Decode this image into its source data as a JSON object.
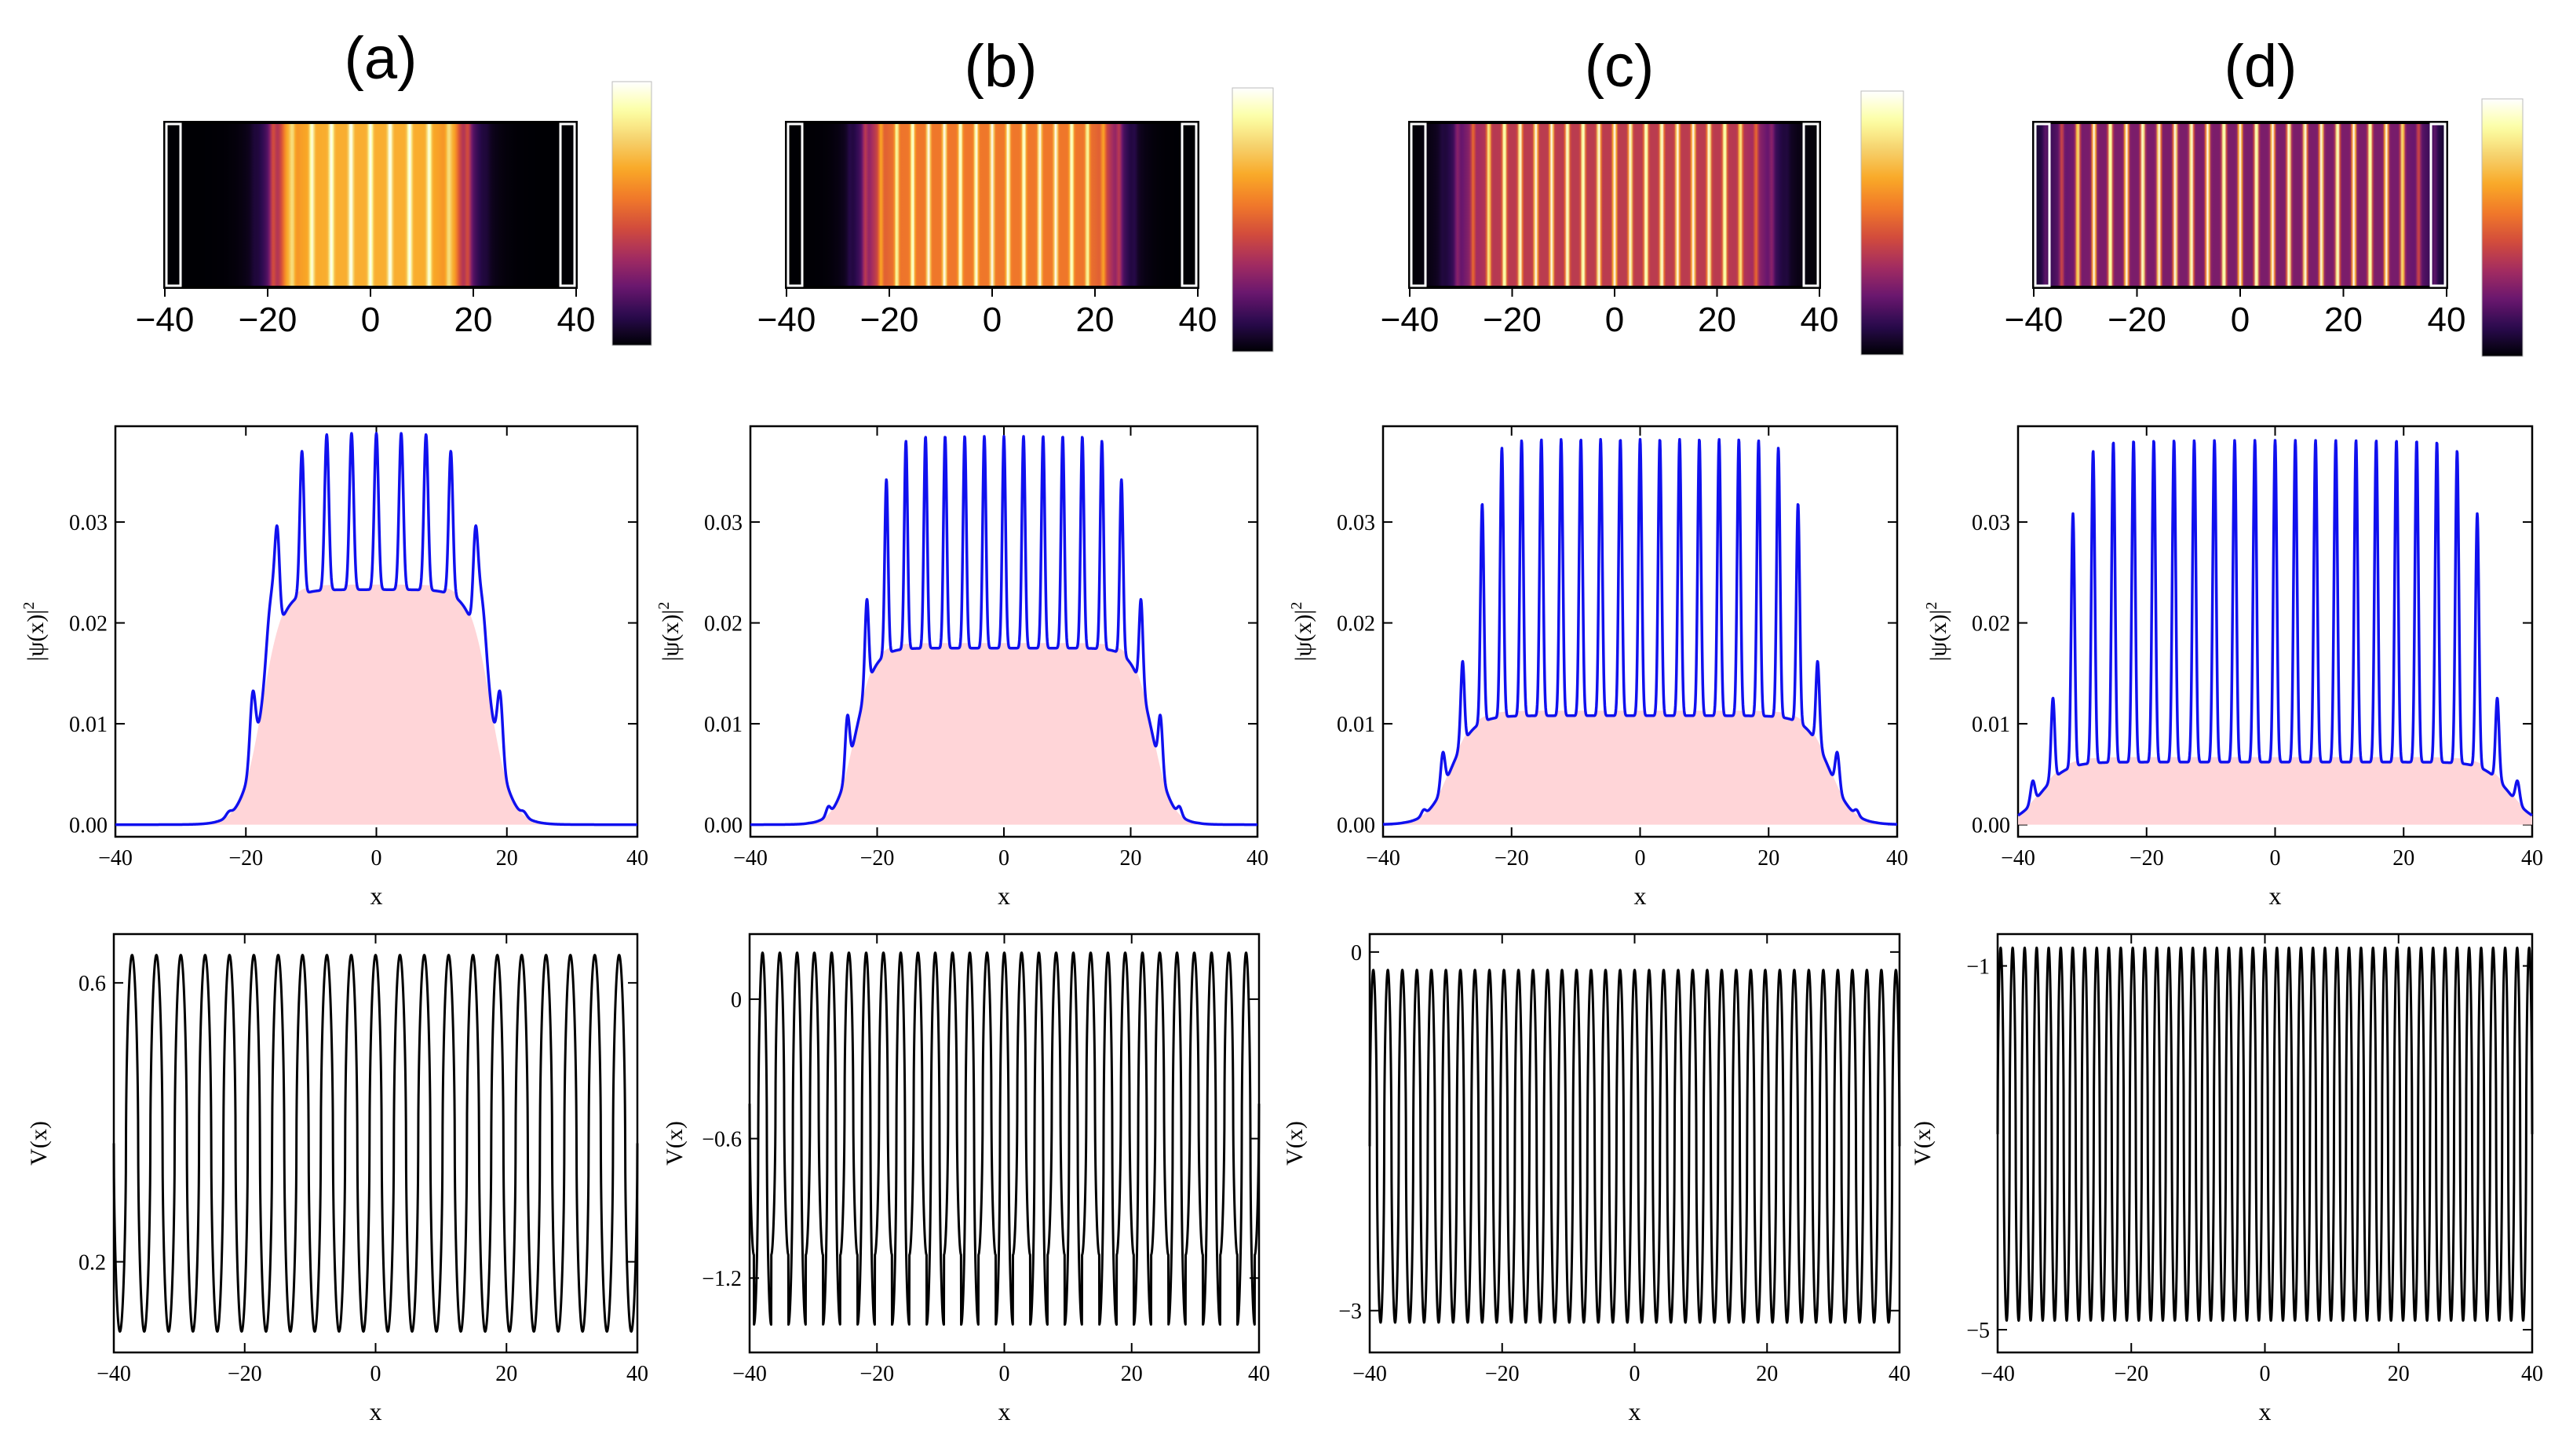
{
  "figure": {
    "panel_labels": [
      "(a)",
      "(b)",
      "(c)",
      "(d)"
    ]
  },
  "colormap": {
    "name": "inferno-like",
    "stops": [
      "#000004",
      "#2a0a4e",
      "#6a176e",
      "#a32c61",
      "#d24c3c",
      "#f0782a",
      "#f9a826",
      "#f6d16c",
      "#fcffa4",
      "#ffffff"
    ]
  },
  "colors": {
    "density_line": "#1010ee",
    "density_fill": "#ffd5d8",
    "potential_line": "#000000",
    "frame": "#000000"
  },
  "chart_data": [
    {
      "panel": "(a)",
      "type": "heatmap",
      "description_values": "density |psi(x)|^2 mapped to color over x",
      "x_ticks": [
        -40,
        -20,
        0,
        20,
        40
      ],
      "xlim": [
        -40,
        40
      ]
    },
    {
      "panel": "(b)",
      "type": "heatmap",
      "x_ticks": [
        -40,
        -20,
        0,
        20,
        40
      ],
      "xlim": [
        -40,
        40
      ]
    },
    {
      "panel": "(c)",
      "type": "heatmap",
      "x_ticks": [
        -40,
        -20,
        0,
        20,
        40
      ],
      "xlim": [
        -40,
        40
      ]
    },
    {
      "panel": "(d)",
      "type": "heatmap",
      "x_ticks": [
        -40,
        -20,
        0,
        20,
        40
      ],
      "xlim": [
        -40,
        40
      ]
    },
    {
      "panel": "(a)",
      "type": "area",
      "xlabel": "x",
      "ylabel": "|ψ(x)|",
      "ylabel_sup": "2",
      "xlim": [
        -40,
        40
      ],
      "ylim": [
        -0.0012,
        0.0395
      ],
      "x_ticks": [
        -40,
        -20,
        0,
        20,
        40
      ],
      "y_ticks": [
        0.0,
        0.01,
        0.02,
        0.03
      ],
      "y_tick_labels": [
        "0.00",
        "0.01",
        "0.02",
        "0.03"
      ],
      "envelope_halfwidth": 17.5,
      "edge_sharpness": 1.6,
      "baseline": 0.0233,
      "peak_max": 0.0388,
      "num_peaks": 8,
      "shoulder_peaks": 0.0185
    },
    {
      "panel": "(b)",
      "type": "area",
      "xlabel": "x",
      "ylabel": "|ψ(x)|",
      "ylabel_sup": "2",
      "xlim": [
        -40,
        40
      ],
      "ylim": [
        -0.0012,
        0.0395
      ],
      "x_ticks": [
        -40,
        -20,
        0,
        20,
        40
      ],
      "y_ticks": [
        0.0,
        0.01,
        0.02,
        0.03
      ],
      "y_tick_labels": [
        "0.00",
        "0.01",
        "0.02",
        "0.03"
      ],
      "envelope_halfwidth": 23.5,
      "edge_sharpness": 1.5,
      "baseline": 0.0175,
      "peak_max": 0.0385,
      "num_peaks": 14
    },
    {
      "panel": "(c)",
      "type": "area",
      "xlabel": "x",
      "ylabel": "|ψ(x)|",
      "ylabel_sup": "2",
      "xlim": [
        -40,
        40
      ],
      "ylim": [
        -0.0012,
        0.0395
      ],
      "x_ticks": [
        -40,
        -20,
        0,
        20,
        40
      ],
      "y_ticks": [
        0.0,
        0.01,
        0.02,
        0.03
      ],
      "y_tick_labels": [
        "0.00",
        "0.01",
        "0.02",
        "0.03"
      ],
      "envelope_halfwidth": 29.5,
      "edge_sharpness": 1.8,
      "baseline": 0.0108,
      "peak_max": 0.0382,
      "num_peaks": 18
    },
    {
      "panel": "(d)",
      "type": "area",
      "xlabel": "x",
      "ylabel": "|ψ(x)|",
      "ylabel_sup": "2",
      "xlim": [
        -40,
        40
      ],
      "ylim": [
        -0.0012,
        0.0395
      ],
      "x_ticks": [
        -40,
        -20,
        0,
        20,
        40
      ],
      "y_ticks": [
        0.0,
        0.01,
        0.02,
        0.03
      ],
      "y_tick_labels": [
        "0.00",
        "0.01",
        "0.02",
        "0.03"
      ],
      "envelope_halfwidth": 36.5,
      "edge_sharpness": 2.0,
      "baseline": 0.0062,
      "peak_max": 0.0381,
      "num_peaks": 22
    },
    {
      "panel": "(a)",
      "type": "line",
      "xlabel": "x",
      "ylabel": "V(x)",
      "xlim": [
        -40,
        40
      ],
      "ylim": [
        0.07,
        0.67
      ],
      "x_ticks": [
        -40,
        -20,
        0,
        20,
        40
      ],
      "y_ticks": [
        0.2,
        0.6
      ],
      "y_tick_labels": [
        "0.2",
        "0.6"
      ],
      "v_min": 0.1,
      "v_max": 0.64,
      "periods": 21.5
    },
    {
      "panel": "(b)",
      "type": "line",
      "xlabel": "x",
      "ylabel": "V(x)",
      "xlim": [
        -40,
        40
      ],
      "ylim": [
        -1.52,
        0.28
      ],
      "x_ticks": [
        -40,
        -20,
        0,
        20,
        40
      ],
      "y_ticks": [
        -1.2,
        -0.6,
        0
      ],
      "y_tick_labels": [
        "-1.2",
        "-0.6",
        "0"
      ],
      "v_min": -1.4,
      "v_max": 0.2,
      "v_alt_min": -1.1,
      "periods": 29.5
    },
    {
      "panel": "(c)",
      "type": "line",
      "xlabel": "x",
      "ylabel": "V(x)",
      "xlim": [
        -40,
        40
      ],
      "ylim": [
        -3.35,
        0.15
      ],
      "x_ticks": [
        -40,
        -20,
        0,
        20,
        40
      ],
      "y_ticks": [
        -3,
        0
      ],
      "y_tick_labels": [
        "-3",
        "0"
      ],
      "v_min": -3.1,
      "v_max": -0.15,
      "periods": 36.5
    },
    {
      "panel": "(d)",
      "type": "line",
      "xlabel": "x",
      "ylabel": "V(x)",
      "xlim": [
        -40,
        40
      ],
      "ylim": [
        -5.25,
        -0.65
      ],
      "x_ticks": [
        -40,
        -20,
        0,
        20,
        40
      ],
      "y_ticks": [
        -5,
        -1
      ],
      "y_tick_labels": [
        "-5",
        "-1"
      ],
      "v_min": -4.9,
      "v_max": -0.8,
      "periods": 44.5
    }
  ]
}
